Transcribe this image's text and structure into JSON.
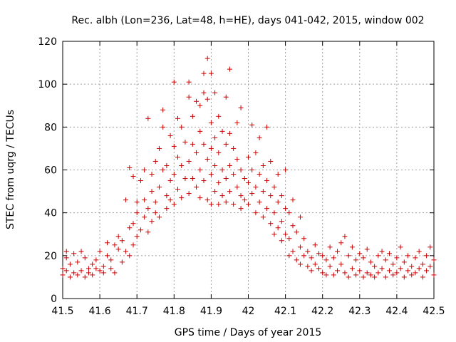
{
  "chart_data": {
    "type": "scatter",
    "title": "Rec. albh (Lon=236, Lat=48, h=HE), days 041-042, 2015, window 002",
    "xlabel": "GPS time / Days of year 2015",
    "ylabel": "STEC from uqrg / TECUs",
    "xlim": [
      41.5,
      42.5
    ],
    "ylim": [
      0,
      120
    ],
    "xticks": [
      41.5,
      41.6,
      41.7,
      41.8,
      41.9,
      42.0,
      42.1,
      42.2,
      42.3,
      42.4,
      42.5
    ],
    "xtick_labels": [
      "41.5",
      "41.6",
      "41.7",
      "41.8",
      "41.9",
      "42",
      "42.1",
      "42.2",
      "42.3",
      "42.4",
      "42.5"
    ],
    "yticks": [
      0,
      20,
      40,
      60,
      80,
      100,
      120
    ],
    "ytick_labels": [
      "0",
      "20",
      "40",
      "60",
      "80",
      "100",
      "120"
    ],
    "grid": true,
    "marker": "plus",
    "color": "#cc0000",
    "series": [
      {
        "name": "STEC",
        "points": [
          [
            41.5,
            11
          ],
          [
            41.5,
            14
          ],
          [
            41.51,
            19
          ],
          [
            41.51,
            13
          ],
          [
            41.51,
            22
          ],
          [
            41.52,
            10
          ],
          [
            41.52,
            16
          ],
          [
            41.53,
            12
          ],
          [
            41.53,
            21
          ],
          [
            41.54,
            17
          ],
          [
            41.54,
            11
          ],
          [
            41.55,
            13
          ],
          [
            41.55,
            22
          ],
          [
            41.56,
            10
          ],
          [
            41.56,
            19
          ],
          [
            41.57,
            14
          ],
          [
            41.57,
            12
          ],
          [
            41.58,
            16
          ],
          [
            41.58,
            11
          ],
          [
            41.59,
            14
          ],
          [
            41.59,
            18
          ],
          [
            41.6,
            13
          ],
          [
            41.6,
            22
          ],
          [
            41.61,
            15
          ],
          [
            41.61,
            12
          ],
          [
            41.62,
            20
          ],
          [
            41.62,
            26
          ],
          [
            41.63,
            18
          ],
          [
            41.63,
            14
          ],
          [
            41.64,
            25
          ],
          [
            41.64,
            12
          ],
          [
            41.65,
            23
          ],
          [
            41.65,
            29
          ],
          [
            41.66,
            27
          ],
          [
            41.66,
            17
          ],
          [
            41.67,
            22
          ],
          [
            41.67,
            46
          ],
          [
            41.68,
            20
          ],
          [
            41.68,
            33
          ],
          [
            41.68,
            61
          ],
          [
            41.69,
            35
          ],
          [
            41.69,
            25
          ],
          [
            41.69,
            57
          ],
          [
            41.7,
            40
          ],
          [
            41.7,
            29
          ],
          [
            41.7,
            45
          ],
          [
            41.71,
            55
          ],
          [
            41.71,
            32
          ],
          [
            41.72,
            38
          ],
          [
            41.72,
            60
          ],
          [
            41.72,
            46
          ],
          [
            41.73,
            42
          ],
          [
            41.73,
            31
          ],
          [
            41.73,
            84
          ],
          [
            41.74,
            58
          ],
          [
            41.74,
            50
          ],
          [
            41.74,
            36
          ],
          [
            41.75,
            64
          ],
          [
            41.75,
            45
          ],
          [
            41.75,
            40
          ],
          [
            41.76,
            70
          ],
          [
            41.76,
            52
          ],
          [
            41.76,
            38
          ],
          [
            41.77,
            88
          ],
          [
            41.77,
            80
          ],
          [
            41.77,
            60
          ],
          [
            41.78,
            48
          ],
          [
            41.78,
            62
          ],
          [
            41.78,
            42
          ],
          [
            41.79,
            76
          ],
          [
            41.79,
            55
          ],
          [
            41.79,
            46
          ],
          [
            41.8,
            101
          ],
          [
            41.8,
            71
          ],
          [
            41.8,
            58
          ],
          [
            41.8,
            44
          ],
          [
            41.81,
            84
          ],
          [
            41.81,
            66
          ],
          [
            41.81,
            51
          ],
          [
            41.82,
            80
          ],
          [
            41.82,
            62
          ],
          [
            41.82,
            47
          ],
          [
            41.83,
            73
          ],
          [
            41.83,
            56
          ],
          [
            41.84,
            101
          ],
          [
            41.84,
            94
          ],
          [
            41.84,
            64
          ],
          [
            41.84,
            49
          ],
          [
            41.85,
            85
          ],
          [
            41.85,
            72
          ],
          [
            41.85,
            56
          ],
          [
            41.86,
            92
          ],
          [
            41.86,
            68
          ],
          [
            41.86,
            52
          ],
          [
            41.87,
            90
          ],
          [
            41.87,
            78
          ],
          [
            41.87,
            60
          ],
          [
            41.87,
            47
          ],
          [
            41.88,
            105
          ],
          [
            41.88,
            96
          ],
          [
            41.88,
            72
          ],
          [
            41.88,
            55
          ],
          [
            41.89,
            112
          ],
          [
            41.89,
            93
          ],
          [
            41.89,
            65
          ],
          [
            41.89,
            46
          ],
          [
            41.9,
            105
          ],
          [
            41.9,
            82
          ],
          [
            41.9,
            70
          ],
          [
            41.9,
            58
          ],
          [
            41.9,
            44
          ],
          [
            41.91,
            96
          ],
          [
            41.91,
            75
          ],
          [
            41.91,
            62
          ],
          [
            41.91,
            50
          ],
          [
            41.92,
            85
          ],
          [
            41.92,
            68
          ],
          [
            41.92,
            54
          ],
          [
            41.92,
            44
          ],
          [
            41.93,
            78
          ],
          [
            41.93,
            60
          ],
          [
            41.93,
            48
          ],
          [
            41.94,
            94
          ],
          [
            41.94,
            72
          ],
          [
            41.94,
            56
          ],
          [
            41.94,
            45
          ],
          [
            41.95,
            107
          ],
          [
            41.95,
            77
          ],
          [
            41.95,
            62
          ],
          [
            41.95,
            50
          ],
          [
            41.96,
            70
          ],
          [
            41.96,
            58
          ],
          [
            41.96,
            44
          ],
          [
            41.97,
            82
          ],
          [
            41.97,
            65
          ],
          [
            41.97,
            52
          ],
          [
            41.98,
            89
          ],
          [
            41.98,
            60
          ],
          [
            41.98,
            48
          ],
          [
            41.98,
            42
          ],
          [
            41.99,
            56
          ],
          [
            41.99,
            46
          ],
          [
            42.0,
            66
          ],
          [
            42.0,
            54
          ],
          [
            42.0,
            44
          ],
          [
            42.01,
            81
          ],
          [
            42.01,
            60
          ],
          [
            42.01,
            49
          ],
          [
            42.02,
            68
          ],
          [
            42.02,
            52
          ],
          [
            42.02,
            40
          ],
          [
            42.03,
            75
          ],
          [
            42.03,
            58
          ],
          [
            42.03,
            45
          ],
          [
            42.04,
            62
          ],
          [
            42.04,
            50
          ],
          [
            42.04,
            38
          ],
          [
            42.05,
            80
          ],
          [
            42.05,
            55
          ],
          [
            42.05,
            42
          ],
          [
            42.06,
            64
          ],
          [
            42.06,
            48
          ],
          [
            42.06,
            35
          ],
          [
            42.07,
            52
          ],
          [
            42.07,
            40
          ],
          [
            42.07,
            30
          ],
          [
            42.08,
            58
          ],
          [
            42.08,
            45
          ],
          [
            42.08,
            33
          ],
          [
            42.09,
            48
          ],
          [
            42.09,
            36
          ],
          [
            42.09,
            27
          ],
          [
            42.1,
            60
          ],
          [
            42.1,
            42
          ],
          [
            42.1,
            30
          ],
          [
            42.11,
            40
          ],
          [
            42.11,
            28
          ],
          [
            42.11,
            20
          ],
          [
            42.12,
            46
          ],
          [
            42.12,
            34
          ],
          [
            42.12,
            22
          ],
          [
            42.13,
            31
          ],
          [
            42.13,
            18
          ],
          [
            42.14,
            38
          ],
          [
            42.14,
            24
          ],
          [
            42.14,
            16
          ],
          [
            42.15,
            28
          ],
          [
            42.15,
            20
          ],
          [
            42.16,
            22
          ],
          [
            42.16,
            15
          ],
          [
            42.17,
            19
          ],
          [
            42.17,
            13
          ],
          [
            42.18,
            25
          ],
          [
            42.18,
            16
          ],
          [
            42.19,
            21
          ],
          [
            42.19,
            14
          ],
          [
            42.2,
            20
          ],
          [
            42.2,
            12
          ],
          [
            42.21,
            18
          ],
          [
            42.21,
            11
          ],
          [
            42.22,
            24
          ],
          [
            42.22,
            15
          ],
          [
            42.23,
            19
          ],
          [
            42.23,
            11
          ],
          [
            42.24,
            22
          ],
          [
            42.24,
            13
          ],
          [
            42.25,
            26
          ],
          [
            42.25,
            16
          ],
          [
            42.26,
            29
          ],
          [
            42.26,
            12
          ],
          [
            42.27,
            20
          ],
          [
            42.27,
            10
          ],
          [
            42.28,
            24
          ],
          [
            42.28,
            14
          ],
          [
            42.29,
            18
          ],
          [
            42.29,
            11
          ],
          [
            42.3,
            21
          ],
          [
            42.3,
            13
          ],
          [
            42.31,
            19
          ],
          [
            42.31,
            10
          ],
          [
            42.32,
            23
          ],
          [
            42.32,
            12
          ],
          [
            42.33,
            17
          ],
          [
            42.33,
            11
          ],
          [
            42.34,
            15
          ],
          [
            42.34,
            10
          ],
          [
            42.35,
            20
          ],
          [
            42.35,
            12
          ],
          [
            42.36,
            22
          ],
          [
            42.36,
            14
          ],
          [
            42.37,
            18
          ],
          [
            42.37,
            10
          ],
          [
            42.38,
            21
          ],
          [
            42.38,
            13
          ],
          [
            42.39,
            16
          ],
          [
            42.39,
            11
          ],
          [
            42.4,
            19
          ],
          [
            42.4,
            12
          ],
          [
            42.41,
            24
          ],
          [
            42.41,
            14
          ],
          [
            42.42,
            17
          ],
          [
            42.42,
            10
          ],
          [
            42.43,
            20
          ],
          [
            42.43,
            13
          ],
          [
            42.44,
            15
          ],
          [
            42.44,
            11
          ],
          [
            42.45,
            19
          ],
          [
            42.45,
            12
          ],
          [
            42.46,
            22
          ],
          [
            42.46,
            14
          ],
          [
            42.47,
            16
          ],
          [
            42.47,
            10
          ],
          [
            42.48,
            20
          ],
          [
            42.48,
            13
          ],
          [
            42.49,
            24
          ],
          [
            42.49,
            15
          ],
          [
            42.5,
            18
          ],
          [
            42.5,
            11
          ]
        ]
      }
    ]
  }
}
